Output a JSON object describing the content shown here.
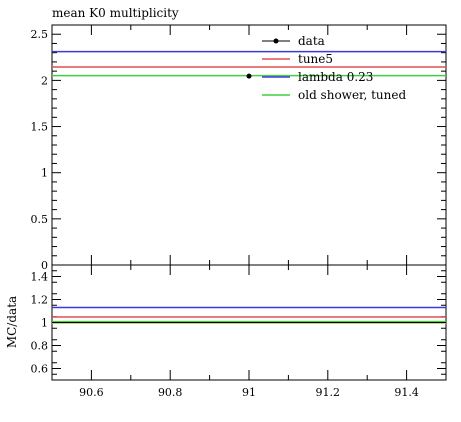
{
  "chart_data": {
    "type": "line",
    "title": "mean K0 multiplicity",
    "x_range": [
      90.5,
      91.5
    ],
    "x_ticks": [
      "90.6",
      "90.8",
      "91",
      "91.2",
      "91.4"
    ],
    "x_tick_values": [
      90.6,
      90.8,
      91.0,
      91.2,
      91.4
    ],
    "main": {
      "ylim": [
        0,
        2.6
      ],
      "y_ticks": [
        "0",
        "0.5",
        "1",
        "1.5",
        "2",
        "2.5"
      ],
      "y_tick_values": [
        0,
        0.5,
        1,
        1.5,
        2,
        2.5
      ]
    },
    "ratio": {
      "ylabel": "MC/data",
      "ylim": [
        0.5,
        1.5
      ],
      "y_ticks": [
        "0.6",
        "0.8",
        "1",
        "1.2",
        "1.4"
      ],
      "y_tick_values": [
        0.6,
        0.8,
        1.0,
        1.2,
        1.4
      ]
    },
    "data_point": {
      "x": 91.0,
      "y": 2.046,
      "name": "data"
    },
    "series": [
      {
        "name": "tune5",
        "color": "#e05050",
        "value": 2.145,
        "ratio": 1.048
      },
      {
        "name": "lambda 0.23",
        "color": "#3a3adc",
        "value": 2.312,
        "ratio": 1.13
      },
      {
        "name": "old shower, tuned",
        "color": "#40d040",
        "value": 2.052,
        "ratio": 1.003
      }
    ],
    "legend_placement": "top-right",
    "grid": false
  }
}
